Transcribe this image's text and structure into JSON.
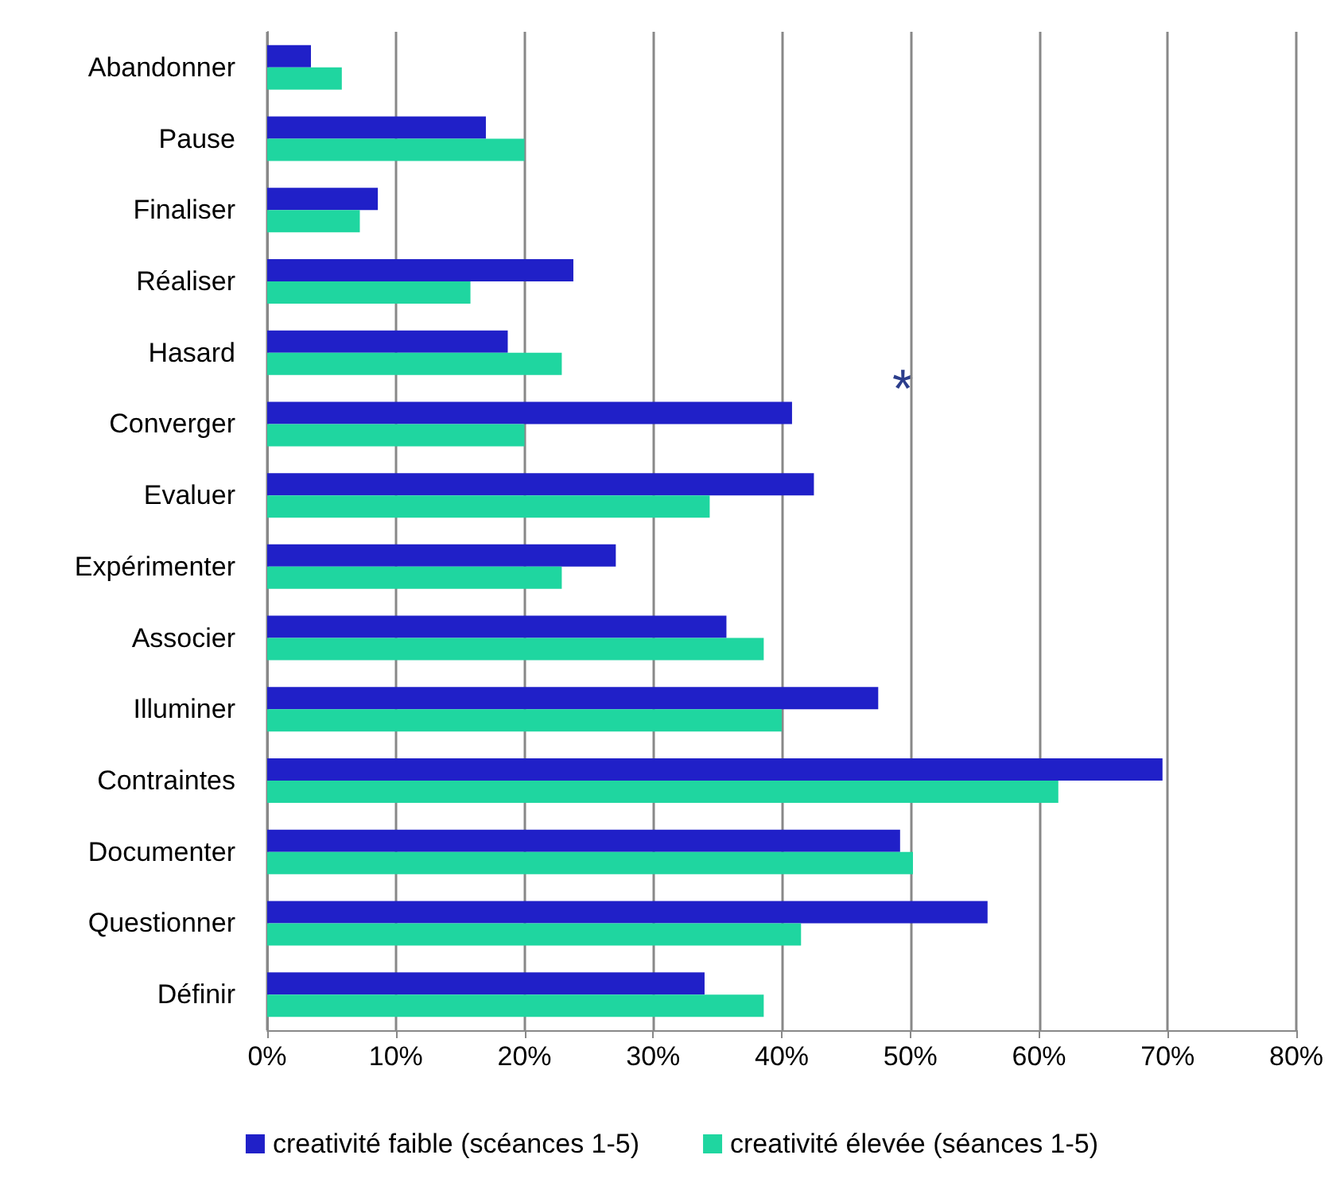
{
  "chart_data": {
    "type": "bar",
    "orientation": "horizontal",
    "categories": [
      "Abandonner",
      "Pause",
      "Finaliser",
      "Réaliser",
      "Hasard",
      "Converger",
      "Evaluer",
      "Expérimenter",
      "Associer",
      "Illuminer",
      "Contraintes",
      "Documenter",
      "Questionner",
      "Définir"
    ],
    "series": [
      {
        "name": "creativité faible (scéances 1-5)",
        "color": "#2020c8",
        "values": [
          3.4,
          17,
          8.6,
          23.8,
          18.7,
          40.8,
          42.5,
          27.1,
          35.7,
          47.5,
          69.6,
          49.2,
          56,
          34
        ]
      },
      {
        "name": "creativité élevée (séances 1-5)",
        "color": "#1fd6a0",
        "values": [
          5.8,
          20,
          7.2,
          15.8,
          22.9,
          20,
          34.4,
          22.9,
          38.6,
          40,
          61.5,
          50.2,
          41.5,
          38.6
        ]
      }
    ],
    "xlim": [
      0,
      80
    ],
    "xticks": [
      {
        "value": 0,
        "label": "0%"
      },
      {
        "value": 10,
        "label": "10%"
      },
      {
        "value": 20,
        "label": "20%"
      },
      {
        "value": 30,
        "label": "30%"
      },
      {
        "value": 40,
        "label": "40%"
      },
      {
        "value": 50,
        "label": "50%"
      },
      {
        "value": 60,
        "label": "60%"
      },
      {
        "value": 70,
        "label": "70%"
      },
      {
        "value": 80,
        "label": "80%"
      }
    ],
    "grid": "x",
    "legend": "bottom",
    "annotations": [
      "*"
    ]
  }
}
